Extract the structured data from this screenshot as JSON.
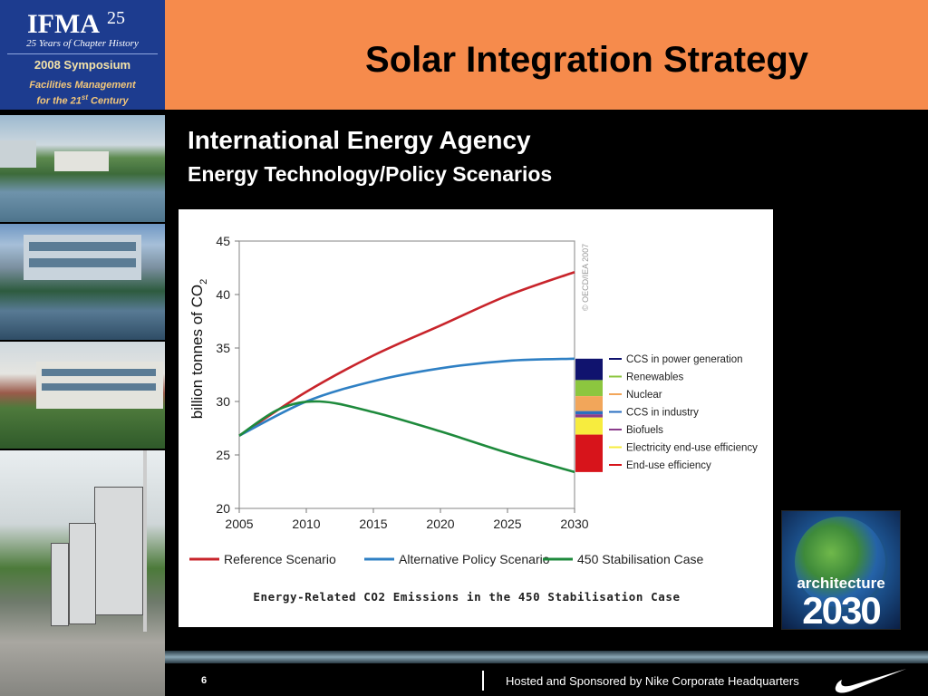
{
  "header": {
    "title": "Solar Integration Strategy",
    "logo": {
      "wordmark": "IFMA",
      "years_mark": "25",
      "tagline": "25 Years of Chapter History",
      "event": "2008 Symposium",
      "subtitle_line1": "Facilities Management",
      "subtitle_line2_pre": "for the 21",
      "subtitle_line2_sup": "st",
      "subtitle_line2_post": " Century"
    }
  },
  "content": {
    "heading_line1": "International Energy Agency",
    "heading_line2": "Energy Technology/Policy Scenarios"
  },
  "chart_data": {
    "type": "line",
    "title": "Energy-Related CO2 Emissions in the 450 Stabilisation Case",
    "ylabel": "billion tonnes of CO",
    "ylabel_subscript": "2",
    "xlabel": "",
    "xlim": [
      2005,
      2030
    ],
    "ylim": [
      20,
      45
    ],
    "x_ticks": [
      "2005",
      "2010",
      "2015",
      "2020",
      "2025",
      "2030"
    ],
    "y_ticks": [
      "20",
      "25",
      "30",
      "35",
      "40",
      "45"
    ],
    "grid": false,
    "copyright": "© OECD/IEA 2007",
    "series": [
      {
        "name": "Reference Scenario",
        "color": "#c8242b",
        "x": [
          2005,
          2010,
          2015,
          2020,
          2025,
          2030
        ],
        "y": [
          26.8,
          30.9,
          34.3,
          37.1,
          39.9,
          42.1
        ]
      },
      {
        "name": "Alternative Policy Scenario",
        "color": "#2f80c4",
        "x": [
          2005,
          2010,
          2015,
          2020,
          2025,
          2030
        ],
        "y": [
          26.8,
          30.0,
          31.9,
          33.1,
          33.8,
          34.0
        ]
      },
      {
        "name": "450 Stabilisation Case",
        "color": "#1e8a3c",
        "x": [
          2005,
          2008,
          2011,
          2015,
          2020,
          2025,
          2030
        ],
        "y": [
          26.8,
          29.3,
          30.0,
          29.0,
          27.2,
          25.2,
          23.4
        ]
      }
    ],
    "wedges": [
      {
        "name": "CCS in power generation",
        "color": "#10136e",
        "from": 32.0,
        "to": 34.0
      },
      {
        "name": "Renewables",
        "color": "#8cc63f",
        "from": 30.5,
        "to": 32.0
      },
      {
        "name": "Nuclear",
        "color": "#f2a65a",
        "from": 29.1,
        "to": 30.5
      },
      {
        "name": "CCS in industry",
        "color": "#2a6fc0",
        "from": 28.8,
        "to": 29.1
      },
      {
        "name": "Biofuels",
        "color": "#8a3c8c",
        "from": 28.5,
        "to": 28.8
      },
      {
        "name": "Electricity end-use efficiency",
        "color": "#f7ec3e",
        "from": 26.9,
        "to": 28.5
      },
      {
        "name": "End-use efficiency",
        "color": "#d7141b",
        "from": 23.4,
        "to": 26.9
      }
    ]
  },
  "badge": {
    "word": "architecture",
    "year": "2030"
  },
  "footer": {
    "page_number": "6",
    "credit": "Hosted and Sponsored by Nike Corporate Headquarters"
  }
}
